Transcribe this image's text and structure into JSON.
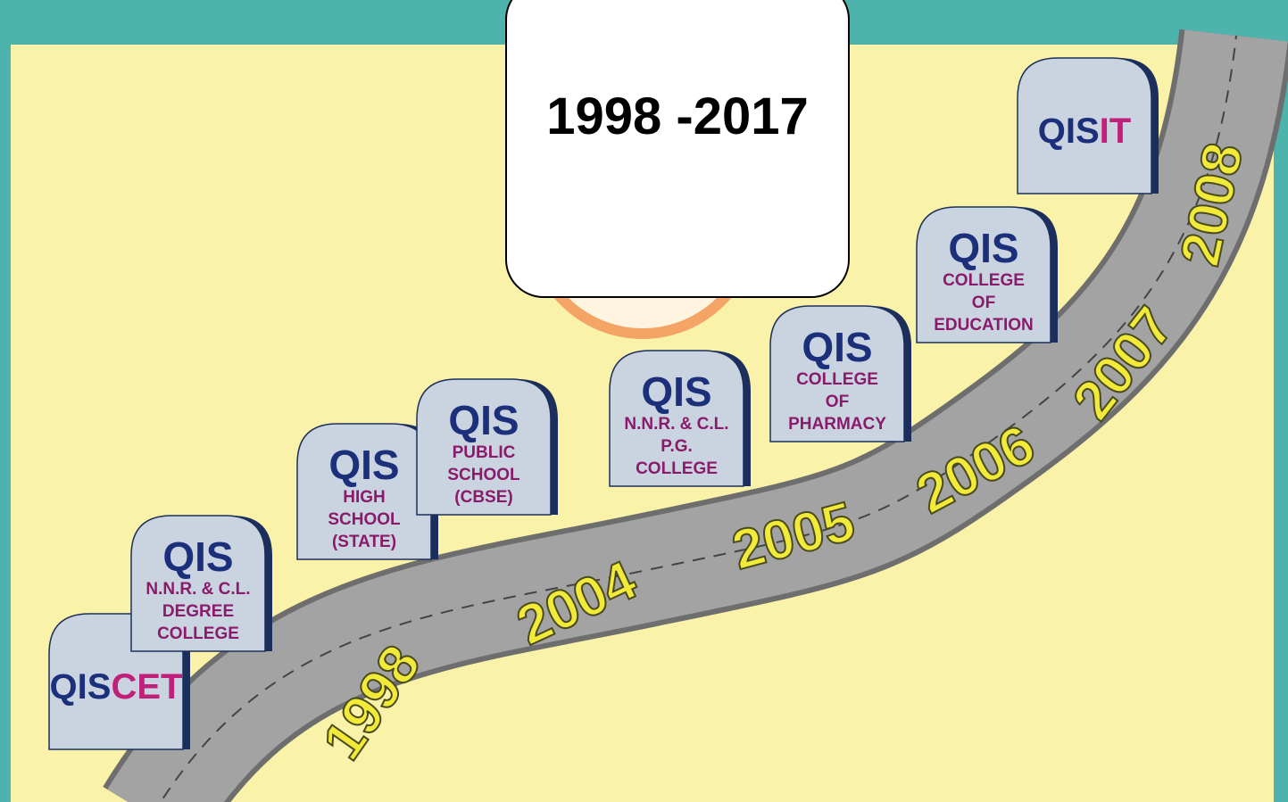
{
  "title": "1998 -2017",
  "years": [
    "1998",
    "2004",
    "2005",
    "2006",
    "2007",
    "2008"
  ],
  "stones": [
    {
      "brand": "QIS",
      "suffix": "CET"
    },
    {
      "brand": "QIS",
      "lines": [
        "N.N.R. & C.L.",
        "DEGREE",
        "COLLEGE"
      ]
    },
    {
      "brand": "QIS",
      "lines": [
        "HIGH",
        "SCHOOL",
        "(STATE)"
      ]
    },
    {
      "brand": "QIS",
      "lines": [
        "PUBLIC",
        "SCHOOL",
        "(CBSE)"
      ]
    },
    {
      "brand": "QIS",
      "lines": [
        "N.N.R. & C.L.",
        "P.G.",
        "COLLEGE"
      ]
    },
    {
      "brand": "QIS",
      "lines": [
        "COLLEGE",
        "OF",
        "PHARMACY"
      ]
    },
    {
      "brand": "QIS",
      "lines": [
        "COLLEGE",
        "OF",
        "EDUCATION"
      ]
    },
    {
      "brand": "QIS",
      "suffix": "IT"
    }
  ]
}
